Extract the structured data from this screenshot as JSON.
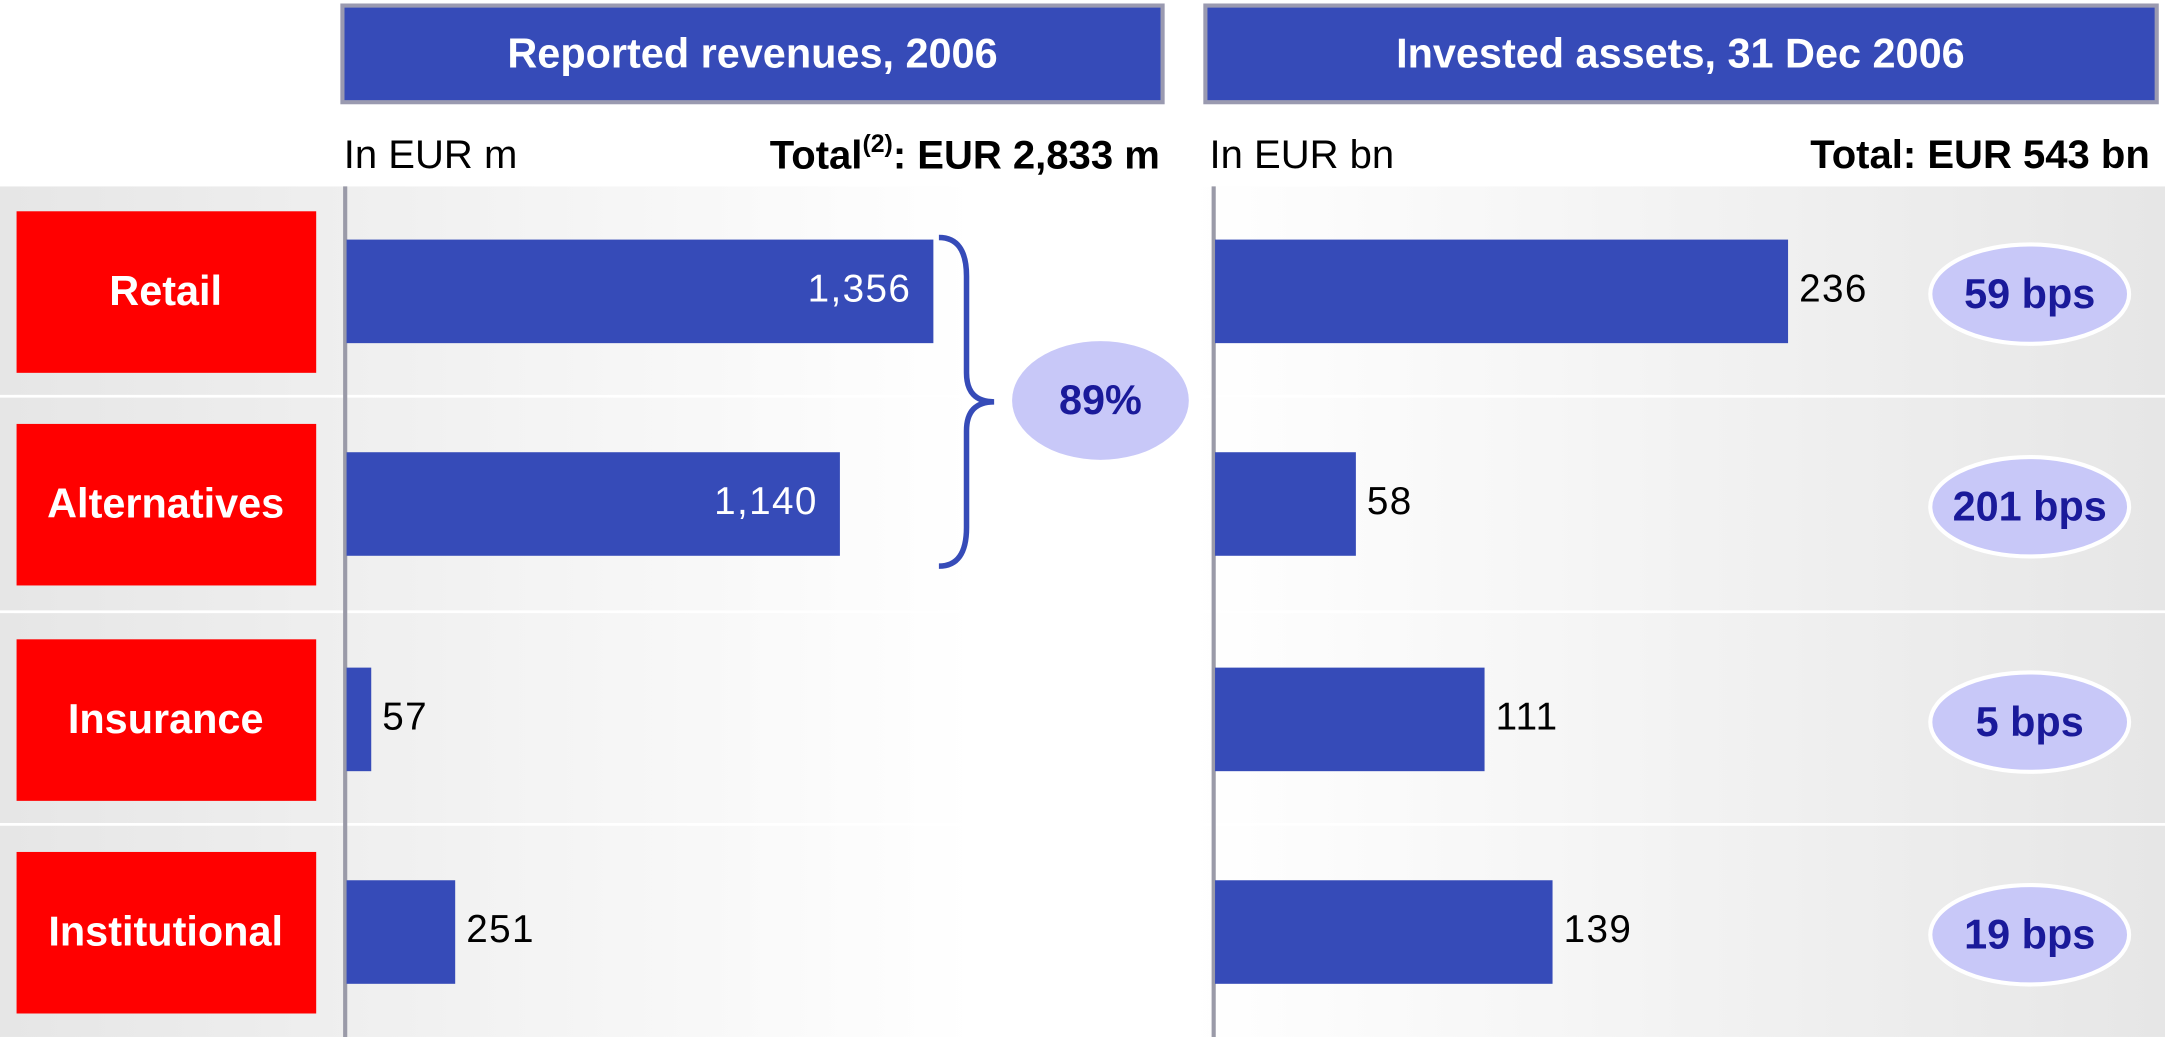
{
  "chart_data": [
    {
      "type": "bar",
      "orientation": "horizontal",
      "title": "Reported revenues, 2006",
      "subtitle": "In EUR m",
      "total_prefix": "Total",
      "total_note": "(2)",
      "total_suffix": ": EUR 2,833 m",
      "categories": [
        "Retail",
        "Alternatives",
        "Insurance",
        "Institutional"
      ],
      "values": [
        1356,
        1140,
        57,
        251
      ],
      "value_labels": [
        "1,356",
        "1,140",
        "57",
        "251"
      ],
      "color": "#364bb8",
      "bracket_label": "89%"
    },
    {
      "type": "bar",
      "orientation": "horizontal",
      "title": "Invested assets, 31 Dec 2006",
      "subtitle": "In EUR bn",
      "total_prefix": "Total: EUR 543 bn",
      "values": [
        236,
        58,
        111,
        139
      ],
      "color": "#364bb8",
      "annotations": [
        "59 bps",
        "201 bps",
        "5 bps",
        "19 bps"
      ]
    }
  ]
}
